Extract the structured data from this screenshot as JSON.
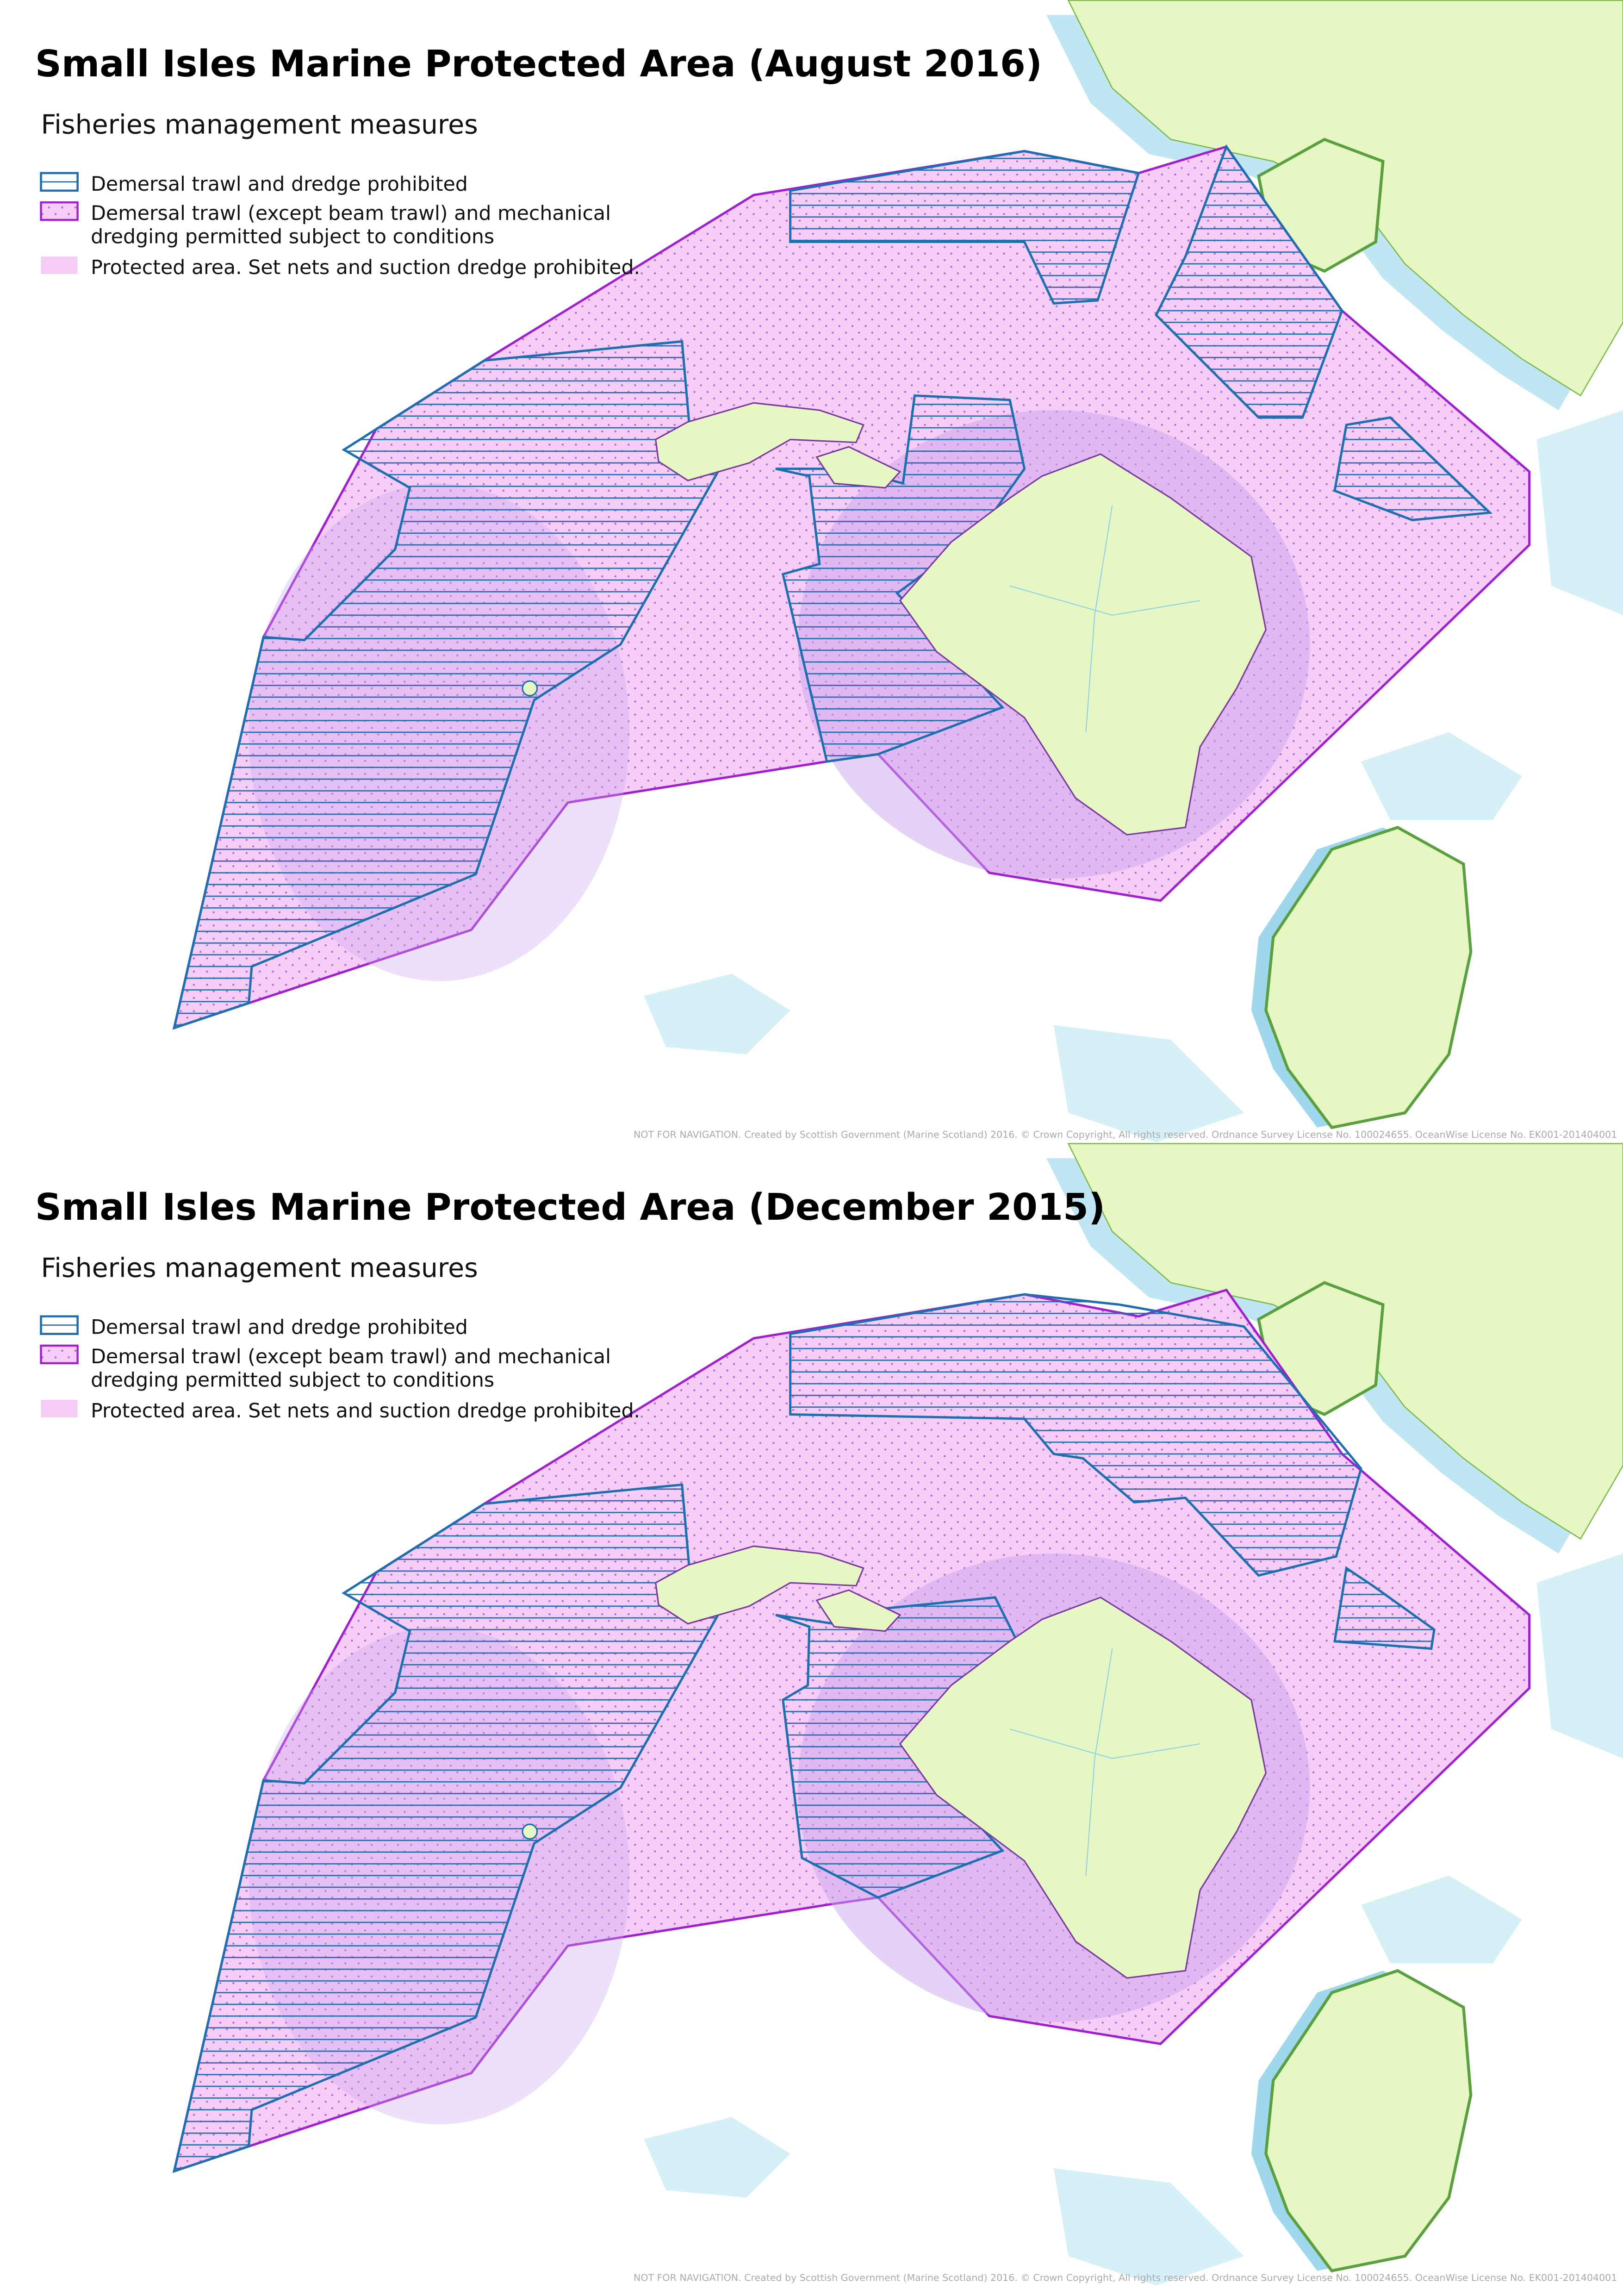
{
  "maps": [
    {
      "title": "Small Isles Marine Protected Area (August 2016)",
      "subtitle": "Fisheries management measures",
      "legend": [
        {
          "lines": [
            "Demersal trawl and dredge prohibited"
          ]
        },
        {
          "lines": [
            "Demersal trawl (except beam trawl) and mechanical",
            "dredging permitted subject to conditions"
          ]
        },
        {
          "lines": [
            "Protected area. Set nets and suction dredge prohibited."
          ]
        }
      ],
      "credit": "NOT FOR NAVIGATION. Created by Scottish Government (Marine Scotland) 2016. © Crown Copyright, All rights reserved. Ordnance Survey License No. 100024655. OceanWise License No. EK001-201404001"
    },
    {
      "title": "Small Isles Marine Protected Area (December 2015)",
      "subtitle": "Fisheries management measures",
      "legend": [
        {
          "lines": [
            "Demersal trawl and dredge prohibited"
          ]
        },
        {
          "lines": [
            "Demersal trawl (except beam trawl) and mechanical",
            "dredging permitted subject to conditions"
          ]
        },
        {
          "lines": [
            "Protected area. Set nets and suction dredge prohibited."
          ]
        }
      ],
      "credit": "NOT FOR NAVIGATION. Created by Scottish Government (Marine Scotland) 2016. © Crown Copyright, All rights reserved. Ordnance Survey License No. 100024655. OceanWise License No. EK001-201404001"
    }
  ]
}
